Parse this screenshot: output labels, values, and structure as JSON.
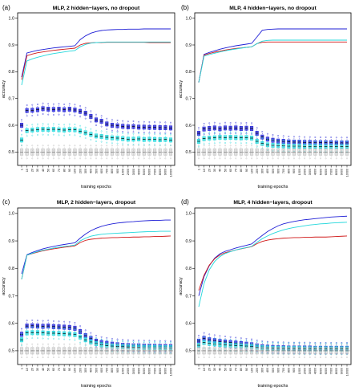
{
  "figure": {
    "xlabel": "training epochs",
    "ylabel": "accuracy"
  },
  "colors": {
    "blue": "#1f1fd6",
    "red": "#d01818",
    "cyan": "#24d8dc",
    "gray": "#b5b5b5",
    "frame": "#000000"
  },
  "chart_data": [
    {
      "type": "line",
      "label": "(a)",
      "title": "MLP, 2 hidden−layers, no dropout",
      "xlabel": "training epochs",
      "ylabel": "accuracy",
      "ylim": [
        0.45,
        1.02
      ],
      "yticks": [
        0.5,
        0.6,
        0.7,
        0.8,
        0.9,
        1.0
      ],
      "baseline": 0.5,
      "x": [
        1,
        10,
        20,
        30,
        40,
        50,
        60,
        70,
        80,
        90,
        100,
        200,
        300,
        400,
        500,
        600,
        700,
        800,
        900,
        1000,
        2000,
        3000,
        4000,
        5000,
        6000,
        7000,
        8000,
        9000,
        10000
      ],
      "series": [
        {
          "color": "blue",
          "style": "line",
          "values": [
            0.78,
            0.87,
            0.875,
            0.88,
            0.883,
            0.886,
            0.889,
            0.891,
            0.893,
            0.895,
            0.897,
            0.92,
            0.934,
            0.944,
            0.95,
            0.954,
            0.956,
            0.957,
            0.958,
            0.958,
            0.959,
            0.959,
            0.959,
            0.96,
            0.96,
            0.96,
            0.96,
            0.96,
            0.96
          ]
        },
        {
          "color": "red",
          "style": "line",
          "values": [
            0.77,
            0.86,
            0.866,
            0.871,
            0.874,
            0.877,
            0.88,
            0.882,
            0.884,
            0.886,
            0.888,
            0.9,
            0.906,
            0.908,
            0.909,
            0.909,
            0.91,
            0.91,
            0.91,
            0.91,
            0.91,
            0.91,
            0.91,
            0.91,
            0.909,
            0.909,
            0.909,
            0.909,
            0.909
          ]
        },
        {
          "color": "cyan",
          "style": "line",
          "values": [
            0.75,
            0.84,
            0.848,
            0.854,
            0.859,
            0.864,
            0.868,
            0.871,
            0.874,
            0.877,
            0.879,
            0.893,
            0.902,
            0.907,
            0.909,
            0.91,
            0.911,
            0.911,
            0.911,
            0.911,
            0.911,
            0.911,
            0.911,
            0.911,
            0.911,
            0.911,
            0.911,
            0.911,
            0.911
          ]
        },
        {
          "color": "blue",
          "style": "boxplot",
          "values": [
            0.6,
            0.655,
            0.656,
            0.658,
            0.662,
            0.66,
            0.659,
            0.66,
            0.658,
            0.66,
            0.657,
            0.652,
            0.645,
            0.633,
            0.62,
            0.615,
            0.605,
            0.6,
            0.598,
            0.596,
            0.594,
            0.595,
            0.593,
            0.593,
            0.592,
            0.592,
            0.591,
            0.591,
            0.59
          ]
        },
        {
          "color": "cyan",
          "style": "boxplot",
          "values": [
            0.545,
            0.58,
            0.582,
            0.584,
            0.585,
            0.584,
            0.585,
            0.583,
            0.582,
            0.584,
            0.583,
            0.578,
            0.572,
            0.566,
            0.56,
            0.558,
            0.555,
            0.553,
            0.552,
            0.55,
            0.548,
            0.548,
            0.549,
            0.547,
            0.548,
            0.547,
            0.546,
            0.547,
            0.545
          ]
        },
        {
          "color": "gray",
          "style": "boxplot",
          "values": [
            0.5,
            0.5,
            0.5,
            0.5,
            0.5,
            0.5,
            0.5,
            0.5,
            0.5,
            0.5,
            0.5,
            0.5,
            0.5,
            0.5,
            0.5,
            0.5,
            0.5,
            0.5,
            0.5,
            0.5,
            0.5,
            0.5,
            0.5,
            0.5,
            0.5,
            0.5,
            0.5,
            0.5,
            0.5
          ]
        }
      ]
    },
    {
      "type": "line",
      "label": "(b)",
      "title": "MLP, 4 hidden−layers, no dropout",
      "xlabel": "training epochs",
      "ylabel": "accuracy",
      "ylim": [
        0.45,
        1.02
      ],
      "yticks": [
        0.5,
        0.6,
        0.7,
        0.8,
        0.9,
        1.0
      ],
      "baseline": 0.5,
      "x": [
        1,
        10,
        20,
        30,
        40,
        50,
        60,
        70,
        80,
        90,
        100,
        200,
        300,
        400,
        500,
        600,
        700,
        800,
        900,
        1000,
        2000,
        3000,
        4000,
        5000,
        6000,
        7000,
        8000,
        9000,
        10000
      ],
      "series": [
        {
          "color": "blue",
          "style": "line",
          "values": [
            0.76,
            0.865,
            0.872,
            0.878,
            0.884,
            0.889,
            0.893,
            0.897,
            0.9,
            0.903,
            0.906,
            0.93,
            0.955,
            0.958,
            0.959,
            0.96,
            0.96,
            0.96,
            0.96,
            0.96,
            0.96,
            0.96,
            0.96,
            0.96,
            0.96,
            0.96,
            0.96,
            0.96,
            0.96
          ]
        },
        {
          "color": "red",
          "style": "line",
          "values": [
            0.76,
            0.862,
            0.868,
            0.873,
            0.877,
            0.881,
            0.884,
            0.887,
            0.889,
            0.891,
            0.893,
            0.905,
            0.91,
            0.911,
            0.911,
            0.911,
            0.911,
            0.911,
            0.911,
            0.911,
            0.911,
            0.911,
            0.911,
            0.911,
            0.911,
            0.911,
            0.911,
            0.911,
            0.911
          ]
        },
        {
          "color": "cyan",
          "style": "line",
          "values": [
            0.76,
            0.858,
            0.864,
            0.869,
            0.874,
            0.878,
            0.882,
            0.885,
            0.888,
            0.891,
            0.893,
            0.905,
            0.914,
            0.917,
            0.918,
            0.918,
            0.918,
            0.918,
            0.918,
            0.918,
            0.918,
            0.918,
            0.918,
            0.918,
            0.918,
            0.918,
            0.918,
            0.918,
            0.918
          ]
        },
        {
          "color": "blue",
          "style": "boxplot",
          "values": [
            0.57,
            0.586,
            0.588,
            0.59,
            0.587,
            0.59,
            0.589,
            0.59,
            0.588,
            0.589,
            0.588,
            0.57,
            0.556,
            0.548,
            0.544,
            0.541,
            0.54,
            0.538,
            0.537,
            0.537,
            0.536,
            0.536,
            0.535,
            0.535,
            0.535,
            0.535,
            0.534,
            0.534,
            0.534
          ]
        },
        {
          "color": "cyan",
          "style": "boxplot",
          "values": [
            0.54,
            0.55,
            0.552,
            0.553,
            0.555,
            0.554,
            0.555,
            0.554,
            0.553,
            0.554,
            0.552,
            0.54,
            0.532,
            0.527,
            0.525,
            0.524,
            0.523,
            0.522,
            0.522,
            0.522,
            0.521,
            0.521,
            0.521,
            0.52,
            0.52,
            0.52,
            0.52,
            0.52,
            0.52
          ]
        },
        {
          "color": "gray",
          "style": "boxplot",
          "values": [
            0.5,
            0.5,
            0.5,
            0.5,
            0.5,
            0.5,
            0.5,
            0.5,
            0.5,
            0.5,
            0.5,
            0.5,
            0.5,
            0.5,
            0.5,
            0.5,
            0.5,
            0.5,
            0.5,
            0.5,
            0.5,
            0.5,
            0.5,
            0.5,
            0.5,
            0.5,
            0.5,
            0.5,
            0.5
          ]
        }
      ]
    },
    {
      "type": "line",
      "label": "(c)",
      "title": "MLP, 2 hidden−layers, dropout",
      "xlabel": "training epochs",
      "ylabel": "accuracy",
      "ylim": [
        0.45,
        1.02
      ],
      "yticks": [
        0.5,
        0.6,
        0.7,
        0.8,
        0.9,
        1.0
      ],
      "baseline": 0.5,
      "x": [
        1,
        10,
        20,
        30,
        40,
        50,
        60,
        70,
        80,
        90,
        100,
        200,
        300,
        400,
        500,
        600,
        700,
        800,
        900,
        1000,
        2000,
        3000,
        4000,
        5000,
        6000,
        7000,
        8000,
        9000,
        10000
      ],
      "series": [
        {
          "color": "blue",
          "style": "line",
          "values": [
            0.78,
            0.85,
            0.858,
            0.865,
            0.871,
            0.876,
            0.88,
            0.884,
            0.887,
            0.89,
            0.893,
            0.91,
            0.925,
            0.937,
            0.946,
            0.953,
            0.958,
            0.962,
            0.965,
            0.967,
            0.969,
            0.97,
            0.972,
            0.973,
            0.974,
            0.975,
            0.975,
            0.976,
            0.976
          ]
        },
        {
          "color": "red",
          "style": "line",
          "values": [
            0.76,
            0.848,
            0.854,
            0.859,
            0.864,
            0.868,
            0.871,
            0.874,
            0.877,
            0.879,
            0.882,
            0.894,
            0.902,
            0.906,
            0.908,
            0.91,
            0.911,
            0.912,
            0.912,
            0.913,
            0.913,
            0.914,
            0.914,
            0.915,
            0.915,
            0.916,
            0.916,
            0.917,
            0.918
          ]
        },
        {
          "color": "cyan",
          "style": "line",
          "values": [
            0.76,
            0.848,
            0.855,
            0.861,
            0.866,
            0.87,
            0.874,
            0.877,
            0.88,
            0.882,
            0.885,
            0.9,
            0.91,
            0.917,
            0.921,
            0.924,
            0.926,
            0.927,
            0.928,
            0.929,
            0.93,
            0.931,
            0.932,
            0.933,
            0.934,
            0.934,
            0.935,
            0.935,
            0.935
          ]
        },
        {
          "color": "blue",
          "style": "boxplot",
          "values": [
            0.56,
            0.59,
            0.591,
            0.59,
            0.589,
            0.59,
            0.588,
            0.587,
            0.586,
            0.585,
            0.582,
            0.57,
            0.555,
            0.545,
            0.535,
            0.53,
            0.527,
            0.524,
            0.522,
            0.52,
            0.519,
            0.518,
            0.518,
            0.517,
            0.517,
            0.516,
            0.516,
            0.516,
            0.515
          ]
        },
        {
          "color": "cyan",
          "style": "boxplot",
          "values": [
            0.54,
            0.565,
            0.566,
            0.566,
            0.565,
            0.564,
            0.564,
            0.563,
            0.562,
            0.561,
            0.559,
            0.55,
            0.54,
            0.532,
            0.526,
            0.522,
            0.519,
            0.517,
            0.516,
            0.515,
            0.514,
            0.513,
            0.513,
            0.512,
            0.512,
            0.512,
            0.511,
            0.511,
            0.511
          ]
        },
        {
          "color": "gray",
          "style": "boxplot",
          "values": [
            0.5,
            0.5,
            0.5,
            0.5,
            0.5,
            0.5,
            0.5,
            0.5,
            0.5,
            0.5,
            0.5,
            0.5,
            0.5,
            0.5,
            0.5,
            0.5,
            0.5,
            0.5,
            0.5,
            0.5,
            0.5,
            0.5,
            0.5,
            0.5,
            0.5,
            0.5,
            0.5,
            0.5,
            0.5
          ]
        }
      ]
    },
    {
      "type": "line",
      "label": "(d)",
      "title": "MLP, 4 hidden−layers, dropout",
      "xlabel": "training epochs",
      "ylabel": "accuracy",
      "ylim": [
        0.45,
        1.02
      ],
      "yticks": [
        0.5,
        0.6,
        0.7,
        0.8,
        0.9,
        1.0
      ],
      "baseline": 0.5,
      "x": [
        1,
        10,
        20,
        30,
        40,
        50,
        60,
        70,
        80,
        90,
        100,
        200,
        300,
        400,
        500,
        600,
        700,
        800,
        900,
        1000,
        2000,
        3000,
        4000,
        5000,
        6000,
        7000,
        8000,
        9000,
        10000
      ],
      "series": [
        {
          "color": "blue",
          "style": "line",
          "values": [
            0.7,
            0.77,
            0.81,
            0.837,
            0.853,
            0.862,
            0.868,
            0.874,
            0.879,
            0.884,
            0.889,
            0.905,
            0.92,
            0.934,
            0.945,
            0.955,
            0.962,
            0.967,
            0.971,
            0.974,
            0.977,
            0.979,
            0.981,
            0.983,
            0.985,
            0.987,
            0.988,
            0.989,
            0.99
          ]
        },
        {
          "color": "red",
          "style": "line",
          "values": [
            0.72,
            0.775,
            0.812,
            0.835,
            0.849,
            0.857,
            0.862,
            0.867,
            0.871,
            0.875,
            0.879,
            0.89,
            0.898,
            0.903,
            0.906,
            0.908,
            0.91,
            0.911,
            0.912,
            0.912,
            0.913,
            0.913,
            0.914,
            0.914,
            0.914,
            0.915,
            0.916,
            0.917,
            0.918
          ]
        },
        {
          "color": "cyan",
          "style": "line",
          "values": [
            0.66,
            0.745,
            0.795,
            0.825,
            0.843,
            0.854,
            0.861,
            0.867,
            0.872,
            0.876,
            0.88,
            0.895,
            0.908,
            0.918,
            0.927,
            0.934,
            0.94,
            0.945,
            0.949,
            0.952,
            0.955,
            0.958,
            0.96,
            0.962,
            0.963,
            0.965,
            0.966,
            0.967,
            0.968
          ]
        },
        {
          "color": "blue",
          "style": "boxplot",
          "values": [
            0.535,
            0.545,
            0.54,
            0.537,
            0.534,
            0.532,
            0.53,
            0.528,
            0.526,
            0.524,
            0.522,
            0.518,
            0.515,
            0.513,
            0.512,
            0.511,
            0.511,
            0.51,
            0.51,
            0.51,
            0.51,
            0.51,
            0.509,
            0.509,
            0.509,
            0.509,
            0.509,
            0.509,
            0.509
          ]
        },
        {
          "color": "cyan",
          "style": "boxplot",
          "values": [
            0.52,
            0.53,
            0.527,
            0.525,
            0.523,
            0.521,
            0.52,
            0.519,
            0.518,
            0.517,
            0.516,
            0.513,
            0.511,
            0.51,
            0.509,
            0.509,
            0.508,
            0.508,
            0.508,
            0.508,
            0.507,
            0.507,
            0.507,
            0.507,
            0.507,
            0.507,
            0.507,
            0.507,
            0.507
          ]
        },
        {
          "color": "gray",
          "style": "boxplot",
          "values": [
            0.5,
            0.5,
            0.5,
            0.5,
            0.5,
            0.5,
            0.5,
            0.5,
            0.5,
            0.5,
            0.5,
            0.5,
            0.5,
            0.5,
            0.5,
            0.5,
            0.5,
            0.5,
            0.5,
            0.5,
            0.5,
            0.5,
            0.5,
            0.5,
            0.5,
            0.5,
            0.5,
            0.5,
            0.5
          ]
        }
      ]
    }
  ]
}
